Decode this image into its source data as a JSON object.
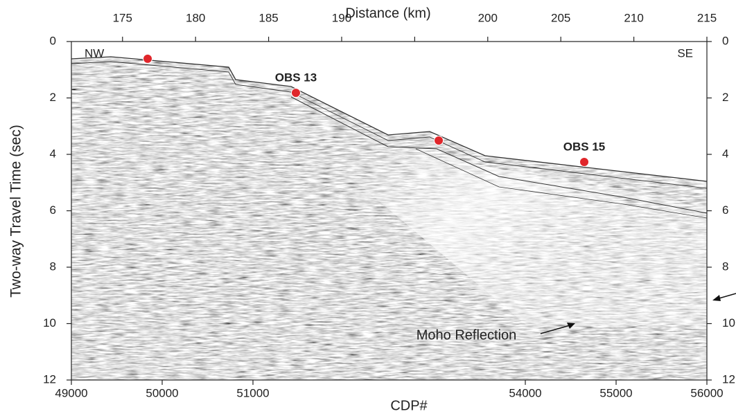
{
  "chart_data": {
    "type": "scatter",
    "x_label": "CDP#",
    "y_label": "Two-way Travel Time (sec)",
    "x2_label": "Distance (km)",
    "xlim": [
      49000,
      56000
    ],
    "xticks": [
      49000,
      50000,
      51000,
      54000,
      55000,
      56000
    ],
    "x2lim": [
      171.5,
      215
    ],
    "x2ticks": [
      175,
      180,
      185,
      190,
      195,
      200,
      205,
      210,
      215
    ],
    "ylim": [
      0,
      12
    ],
    "yticks": [
      0,
      2,
      4,
      6,
      8,
      10,
      12
    ],
    "y_inverted": true,
    "y2lim": [
      0,
      12
    ],
    "y2ticks": [
      0,
      2,
      4,
      6,
      8,
      10,
      12
    ],
    "series": [
      {
        "color": "#e0262b",
        "x": [
          49840,
          51473,
          53046,
          54649
        ],
        "values": [
          0.61,
          1.82,
          3.51,
          4.27
        ],
        "point_labels": [
          null,
          "OBS 13",
          null,
          "OBS 15"
        ]
      }
    ],
    "annotations": [
      "NW",
      "SE",
      "Moho Reflection"
    ]
  }
}
